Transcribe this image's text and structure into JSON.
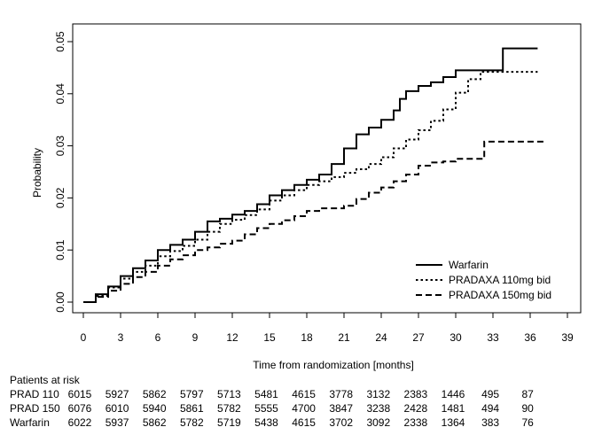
{
  "chart_data": {
    "type": "line",
    "xlabel": "Time from randomization [months]",
    "ylabel": "Probability",
    "xlim": [
      0,
      39
    ],
    "ylim": [
      0,
      0.05
    ],
    "x_ticks": [
      "0",
      "3",
      "6",
      "9",
      "12",
      "15",
      "18",
      "21",
      "24",
      "27",
      "30",
      "33",
      "36",
      "39"
    ],
    "y_ticks": [
      "0.00",
      "0.01",
      "0.02",
      "0.03",
      "0.04",
      "0.05"
    ],
    "legend_position": "bottom-right",
    "series": [
      {
        "name": "Warfarin",
        "style": "solid",
        "points": [
          [
            0,
            0
          ],
          [
            1,
            0.0015
          ],
          [
            2,
            0.003
          ],
          [
            3,
            0.005
          ],
          [
            4,
            0.0065
          ],
          [
            5,
            0.008
          ],
          [
            6,
            0.01
          ],
          [
            7,
            0.011
          ],
          [
            8,
            0.012
          ],
          [
            9,
            0.0135
          ],
          [
            10,
            0.0155
          ],
          [
            11,
            0.016
          ],
          [
            12,
            0.0168
          ],
          [
            13,
            0.0175
          ],
          [
            14,
            0.0188
          ],
          [
            15,
            0.0205
          ],
          [
            16,
            0.0215
          ],
          [
            17,
            0.0225
          ],
          [
            18,
            0.0235
          ],
          [
            19,
            0.0245
          ],
          [
            20,
            0.0265
          ],
          [
            21,
            0.0295
          ],
          [
            22,
            0.0322
          ],
          [
            23,
            0.0335
          ],
          [
            24,
            0.035
          ],
          [
            25,
            0.0368
          ],
          [
            25.5,
            0.039
          ],
          [
            26,
            0.0405
          ],
          [
            27,
            0.0415
          ],
          [
            28,
            0.0422
          ],
          [
            29,
            0.0432
          ],
          [
            30,
            0.0445
          ],
          [
            33.8,
            0.0445
          ],
          [
            33.8,
            0.0487
          ],
          [
            36.6,
            0.0487
          ]
        ]
      },
      {
        "name": "PRADAXA 110mg bid",
        "style": "dotted",
        "points": [
          [
            0,
            0
          ],
          [
            1,
            0.0012
          ],
          [
            2,
            0.0028
          ],
          [
            3,
            0.0045
          ],
          [
            4,
            0.0058
          ],
          [
            5,
            0.007
          ],
          [
            6,
            0.0088
          ],
          [
            7,
            0.0098
          ],
          [
            8,
            0.0108
          ],
          [
            9,
            0.012
          ],
          [
            10,
            0.0135
          ],
          [
            11,
            0.015
          ],
          [
            12,
            0.0158
          ],
          [
            13,
            0.0167
          ],
          [
            14,
            0.0178
          ],
          [
            15,
            0.0195
          ],
          [
            16,
            0.0205
          ],
          [
            17,
            0.0215
          ],
          [
            18,
            0.0225
          ],
          [
            19,
            0.0232
          ],
          [
            20,
            0.024
          ],
          [
            21,
            0.0248
          ],
          [
            22,
            0.0255
          ],
          [
            23,
            0.0265
          ],
          [
            24,
            0.0278
          ],
          [
            25,
            0.0295
          ],
          [
            26,
            0.0312
          ],
          [
            27,
            0.033
          ],
          [
            28,
            0.0348
          ],
          [
            29,
            0.037
          ],
          [
            30,
            0.0402
          ],
          [
            31,
            0.0428
          ],
          [
            32,
            0.0442
          ],
          [
            36.6,
            0.0442
          ]
        ]
      },
      {
        "name": "PRADAXA 150mg bid",
        "style": "dashed",
        "points": [
          [
            0,
            0
          ],
          [
            1,
            0.001
          ],
          [
            2,
            0.0022
          ],
          [
            3,
            0.0035
          ],
          [
            4,
            0.0048
          ],
          [
            5,
            0.0058
          ],
          [
            6,
            0.007
          ],
          [
            7,
            0.0082
          ],
          [
            8,
            0.009
          ],
          [
            9,
            0.01
          ],
          [
            10,
            0.0105
          ],
          [
            11,
            0.0112
          ],
          [
            12,
            0.0118
          ],
          [
            13,
            0.013
          ],
          [
            14,
            0.0142
          ],
          [
            15,
            0.015
          ],
          [
            16,
            0.0157
          ],
          [
            17,
            0.0165
          ],
          [
            18,
            0.0175
          ],
          [
            19,
            0.018
          ],
          [
            20,
            0.018
          ],
          [
            21,
            0.0185
          ],
          [
            22,
            0.0198
          ],
          [
            23,
            0.021
          ],
          [
            24,
            0.022
          ],
          [
            25,
            0.0232
          ],
          [
            26,
            0.0245
          ],
          [
            27,
            0.0262
          ],
          [
            28,
            0.0268
          ],
          [
            29,
            0.027
          ],
          [
            30,
            0.0275
          ],
          [
            32.3,
            0.0275
          ],
          [
            32.3,
            0.0308
          ],
          [
            37.2,
            0.0308
          ]
        ]
      }
    ],
    "risk_table": {
      "title": "Patients at risk",
      "rows": [
        {
          "label": "PRAD 110",
          "values": [
            "6015",
            "5927",
            "5862",
            "5797",
            "5713",
            "5481",
            "4615",
            "3778",
            "3132",
            "2383",
            "1446",
            "495",
            "87"
          ]
        },
        {
          "label": "PRAD 150",
          "values": [
            "6076",
            "6010",
            "5940",
            "5861",
            "5782",
            "5555",
            "4700",
            "3847",
            "3238",
            "2428",
            "1481",
            "494",
            "90"
          ]
        },
        {
          "label": "Warfarin",
          "values": [
            "6022",
            "5937",
            "5862",
            "5782",
            "5719",
            "5438",
            "4615",
            "3702",
            "3092",
            "2338",
            "1364",
            "383",
            "76"
          ]
        }
      ]
    }
  }
}
